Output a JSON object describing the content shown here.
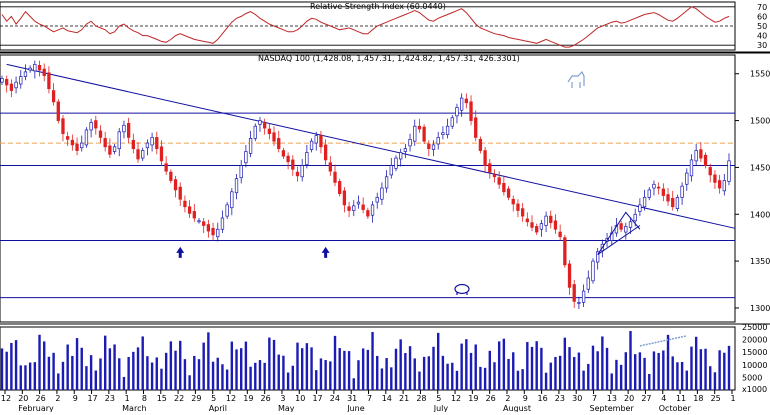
{
  "rsi_panel": {
    "title": "Relative Strength Index (60.0440)",
    "ticks": [
      "70",
      "60",
      "50",
      "40",
      "30"
    ],
    "levels": [
      30,
      50,
      70
    ]
  },
  "price_panel": {
    "title": "NASDAQ 100 (1,428.08, 1,457.31, 1,424.82, 1,457.31, 426.3301)",
    "ticks": [
      "1550",
      "1500",
      "1450",
      "1400",
      "1350",
      "1300"
    ],
    "hlines": [
      1508,
      1452,
      1372,
      1311
    ],
    "ref_line": 1476,
    "trendline": {
      "from": [
        1,
        1560
      ],
      "to": [
        155,
        1385
      ]
    },
    "up_arrows": [
      38,
      69
    ]
  },
  "volume_panel": {
    "ticks": [
      "25000",
      "20000",
      "15000",
      "10000",
      "5000",
      "x1000"
    ]
  },
  "x_axis": {
    "day_labels": [
      "12",
      "20",
      "26",
      "2",
      "9",
      "17",
      "23",
      "1",
      "8",
      "15",
      "22",
      "29",
      "5",
      "12",
      "19",
      "26",
      "3",
      "10",
      "17",
      "24",
      "31",
      "7",
      "14",
      "21",
      "28",
      "5",
      "12",
      "19",
      "26",
      "2",
      "9",
      "16",
      "23",
      "30",
      "7",
      "13",
      "20",
      "27",
      "4",
      "11",
      "18",
      "25",
      "1"
    ],
    "month_labels": [
      "February",
      "March",
      "April",
      "May",
      "June",
      "July",
      "August",
      "September",
      "October"
    ]
  },
  "colors": {
    "up": "#1c1cb4",
    "down": "#e02020",
    "line": "#1010a0",
    "ref": "#f0a050",
    "rsi": "#c02828",
    "volume": "#1c1cb4",
    "grid": "#999999"
  },
  "chart_data": {
    "type": "candlestick",
    "title": "NASDAQ 100 (1,428.08, 1,457.31, 1,424.82, 1,457.31, 426.3301)",
    "ylim": [
      1285,
      1570
    ],
    "rsi_ylim": [
      25,
      75
    ],
    "volume_ylim": [
      0,
      25000
    ],
    "sessions": 156,
    "close": [
      1545,
      1538,
      1532,
      1541,
      1547,
      1552,
      1556,
      1560,
      1554,
      1548,
      1534,
      1520,
      1500,
      1486,
      1480,
      1474,
      1468,
      1476,
      1490,
      1498,
      1492,
      1482,
      1472,
      1464,
      1472,
      1488,
      1495,
      1482,
      1470,
      1459,
      1468,
      1476,
      1482,
      1470,
      1457,
      1446,
      1436,
      1426,
      1416,
      1408,
      1401,
      1396,
      1393,
      1388,
      1382,
      1378,
      1384,
      1396,
      1410,
      1424,
      1438,
      1452,
      1467,
      1481,
      1494,
      1500,
      1492,
      1486,
      1478,
      1470,
      1462,
      1456,
      1448,
      1441,
      1452,
      1466,
      1478,
      1484,
      1472,
      1458,
      1446,
      1434,
      1422,
      1410,
      1404,
      1409,
      1413,
      1405,
      1398,
      1410,
      1418,
      1428,
      1440,
      1452,
      1460,
      1466,
      1470,
      1480,
      1494,
      1491,
      1478,
      1470,
      1474,
      1482,
      1487,
      1494,
      1503,
      1514,
      1524,
      1519,
      1500,
      1482,
      1468,
      1452,
      1445,
      1440,
      1432,
      1424,
      1418,
      1411,
      1404,
      1398,
      1392,
      1386,
      1381,
      1390,
      1398,
      1391,
      1384,
      1376,
      1346,
      1322,
      1307,
      1306,
      1318,
      1332,
      1350,
      1360,
      1368,
      1374,
      1380,
      1388,
      1384,
      1387,
      1392,
      1400,
      1410,
      1418,
      1426,
      1432,
      1428,
      1420,
      1414,
      1408,
      1418,
      1430,
      1444,
      1458,
      1468,
      1460,
      1452,
      1442,
      1434,
      1428,
      1436,
      1457
    ],
    "rsi": [
      62,
      55,
      60,
      52,
      58,
      65,
      60,
      55,
      52,
      50,
      47,
      44,
      46,
      48,
      45,
      44,
      43,
      46,
      52,
      55,
      50,
      48,
      46,
      42,
      44,
      50,
      52,
      48,
      45,
      43,
      40,
      40,
      38,
      36,
      34,
      33,
      36,
      40,
      42,
      40,
      38,
      36,
      35,
      34,
      33,
      32,
      36,
      42,
      48,
      54,
      58,
      60,
      63,
      65,
      62,
      58,
      55,
      52,
      50,
      48,
      46,
      44,
      44,
      46,
      50,
      55,
      58,
      57,
      54,
      52,
      50,
      48,
      46,
      47,
      48,
      46,
      44,
      42,
      42,
      46,
      50,
      52,
      54,
      56,
      58,
      60,
      62,
      64,
      66,
      64,
      60,
      56,
      55,
      58,
      60,
      62,
      64,
      66,
      68,
      64,
      58,
      52,
      48,
      46,
      44,
      42,
      41,
      40,
      38,
      37,
      36,
      35,
      34,
      33,
      32,
      34,
      36,
      34,
      32,
      30,
      28,
      28,
      30,
      33,
      36,
      40,
      44,
      48,
      50,
      52,
      54,
      55,
      53,
      54,
      56,
      58,
      60,
      62,
      63,
      64,
      62,
      59,
      56,
      55,
      58,
      62,
      66,
      70,
      68,
      64,
      60,
      57,
      54,
      55,
      58,
      60
    ]
  }
}
